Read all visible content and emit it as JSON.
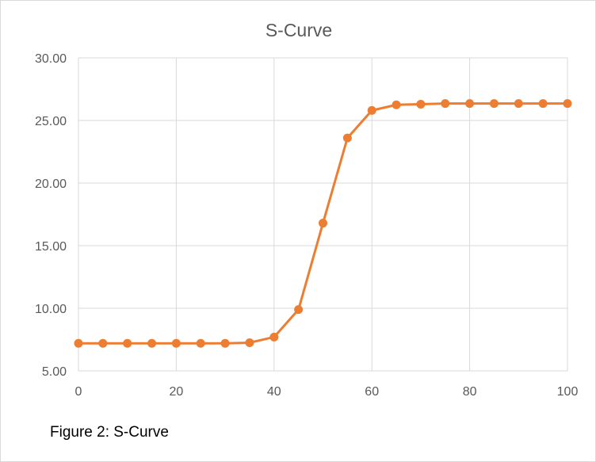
{
  "caption": "Figure 2: S-Curve",
  "colors": {
    "series": "#ED7D31",
    "grid": "#D9D9D9",
    "text": "#595959"
  },
  "chart_data": {
    "type": "scatter",
    "title": "S-Curve",
    "xlabel": "",
    "ylabel": "",
    "xlim": [
      0,
      100
    ],
    "ylim": [
      5,
      30
    ],
    "xticks": [
      0,
      20,
      40,
      60,
      80,
      100
    ],
    "xtick_labels": [
      "0",
      "20",
      "40",
      "60",
      "80",
      "100"
    ],
    "yticks": [
      5,
      10,
      15,
      20,
      25,
      30
    ],
    "ytick_labels": [
      "5.00",
      "10.00",
      "15.00",
      "20.00",
      "25.00",
      "30.00"
    ],
    "grid": true,
    "legend": "none",
    "series": [
      {
        "x": [
          0,
          5,
          10,
          15,
          20,
          25,
          30,
          35,
          40,
          45,
          50,
          55,
          60,
          65,
          70,
          75,
          80,
          85,
          90,
          95,
          100
        ],
        "y": [
          7.2,
          7.2,
          7.2,
          7.2,
          7.2,
          7.2,
          7.2,
          7.25,
          7.7,
          9.9,
          16.8,
          23.6,
          25.8,
          26.25,
          26.3,
          26.35,
          26.35,
          26.35,
          26.35,
          26.35,
          26.35
        ]
      }
    ]
  }
}
